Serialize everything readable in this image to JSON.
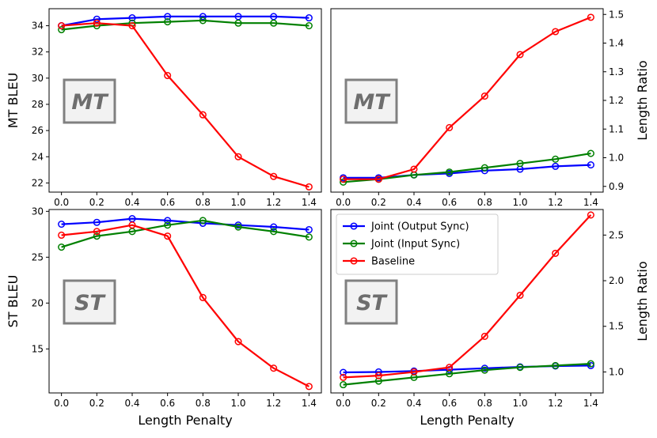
{
  "colors": {
    "joint_output": "#0000ff",
    "joint_input": "#008000",
    "baseline": "#ff0000",
    "badge_fill": "#f2f2f2",
    "badge_border": "#808080"
  },
  "chart_data": [
    {
      "id": "mt-bleu",
      "type": "line",
      "badge": "MT",
      "ylabel": "MT BLEU",
      "xlabel": "",
      "x": [
        0.0,
        0.2,
        0.4,
        0.6,
        0.8,
        1.0,
        1.2,
        1.4
      ],
      "xticks": [
        "0.0",
        "0.2",
        "0.4",
        "0.6",
        "0.8",
        "1.0",
        "1.2",
        "1.4"
      ],
      "xlim": [
        -0.07,
        1.47
      ],
      "ylim": [
        21.3,
        35.3
      ],
      "yticks": [
        22,
        24,
        26,
        28,
        30,
        32,
        34
      ],
      "ytick_labels": [
        "22",
        "24",
        "26",
        "28",
        "30",
        "32",
        "34"
      ],
      "yaxis_side": "left",
      "series": [
        {
          "name": "Joint (Output Sync)",
          "color_key": "joint_output",
          "values": [
            34.0,
            34.5,
            34.6,
            34.7,
            34.7,
            34.7,
            34.7,
            34.6
          ]
        },
        {
          "name": "Joint (Input Sync)",
          "color_key": "joint_input",
          "values": [
            33.7,
            34.0,
            34.2,
            34.3,
            34.4,
            34.2,
            34.2,
            34.0
          ]
        },
        {
          "name": "Baseline",
          "color_key": "baseline",
          "values": [
            34.0,
            34.2,
            34.0,
            30.2,
            27.2,
            24.0,
            22.5,
            21.7
          ]
        }
      ]
    },
    {
      "id": "mt-length",
      "type": "line",
      "badge": "MT",
      "ylabel": "Length Ratio",
      "xlabel": "",
      "x": [
        0.0,
        0.2,
        0.4,
        0.6,
        0.8,
        1.0,
        1.2,
        1.4
      ],
      "xticks": [
        "0.0",
        "0.2",
        "0.4",
        "0.6",
        "0.8",
        "1.0",
        "1.2",
        "1.4"
      ],
      "xlim": [
        -0.07,
        1.47
      ],
      "ylim": [
        0.88,
        1.52
      ],
      "yticks": [
        0.9,
        1.0,
        1.1,
        1.2,
        1.3,
        1.4,
        1.5
      ],
      "ytick_labels": [
        "0.9",
        "1.0",
        "1.1",
        "1.2",
        "1.3",
        "1.4",
        "1.5"
      ],
      "yaxis_side": "right",
      "series": [
        {
          "name": "Joint (Output Sync)",
          "color_key": "joint_output",
          "values": [
            0.93,
            0.93,
            0.94,
            0.945,
            0.955,
            0.96,
            0.97,
            0.975
          ]
        },
        {
          "name": "Joint (Input Sync)",
          "color_key": "joint_input",
          "values": [
            0.915,
            0.925,
            0.94,
            0.95,
            0.965,
            0.98,
            0.995,
            1.015
          ]
        },
        {
          "name": "Baseline",
          "color_key": "baseline",
          "values": [
            0.925,
            0.925,
            0.96,
            1.105,
            1.215,
            1.36,
            1.44,
            1.49
          ]
        }
      ]
    },
    {
      "id": "st-bleu",
      "type": "line",
      "badge": "ST",
      "ylabel": "ST BLEU",
      "xlabel": "Length Penalty",
      "x": [
        0.0,
        0.2,
        0.4,
        0.6,
        0.8,
        1.0,
        1.2,
        1.4
      ],
      "xticks": [
        "0.0",
        "0.2",
        "0.4",
        "0.6",
        "0.8",
        "1.0",
        "1.2",
        "1.4"
      ],
      "xlim": [
        -0.07,
        1.47
      ],
      "ylim": [
        10.2,
        30.2
      ],
      "yticks": [
        15,
        20,
        25,
        30
      ],
      "ytick_labels": [
        "15",
        "20",
        "25",
        "30"
      ],
      "yaxis_side": "left",
      "series": [
        {
          "name": "Joint (Output Sync)",
          "color_key": "joint_output",
          "values": [
            28.6,
            28.8,
            29.2,
            29.0,
            28.7,
            28.5,
            28.3,
            28.0
          ]
        },
        {
          "name": "Joint (Input Sync)",
          "color_key": "joint_input",
          "values": [
            26.1,
            27.3,
            27.8,
            28.5,
            29.0,
            28.3,
            27.8,
            27.2
          ]
        },
        {
          "name": "Baseline",
          "color_key": "baseline",
          "values": [
            27.4,
            27.8,
            28.5,
            27.3,
            20.6,
            15.8,
            12.9,
            10.9
          ]
        }
      ]
    },
    {
      "id": "st-length",
      "type": "line",
      "badge": "ST",
      "ylabel": "Length Ratio",
      "xlabel": "Length Penalty",
      "x": [
        0.0,
        0.2,
        0.4,
        0.6,
        0.8,
        1.0,
        1.2,
        1.4
      ],
      "xticks": [
        "0.0",
        "0.2",
        "0.4",
        "0.6",
        "0.8",
        "1.0",
        "1.2",
        "1.4"
      ],
      "xlim": [
        -0.07,
        1.47
      ],
      "ylim": [
        0.77,
        2.78
      ],
      "yticks": [
        1.0,
        1.5,
        2.0,
        2.5
      ],
      "ytick_labels": [
        "1.0",
        "1.5",
        "2.0",
        "2.5"
      ],
      "yaxis_side": "right",
      "legend": {
        "location": "upper-left",
        "entries": [
          "Joint (Output Sync)",
          "Joint (Input Sync)",
          "Baseline"
        ]
      },
      "series": [
        {
          "name": "Joint (Output Sync)",
          "color_key": "joint_output",
          "values": [
            0.995,
            1.0,
            1.01,
            1.025,
            1.04,
            1.055,
            1.065,
            1.07
          ]
        },
        {
          "name": "Joint (Input Sync)",
          "color_key": "joint_input",
          "values": [
            0.86,
            0.9,
            0.94,
            0.98,
            1.02,
            1.05,
            1.07,
            1.09
          ]
        },
        {
          "name": "Baseline",
          "color_key": "baseline",
          "values": [
            0.94,
            0.96,
            1.0,
            1.05,
            1.39,
            1.84,
            2.3,
            2.72
          ]
        }
      ]
    }
  ]
}
